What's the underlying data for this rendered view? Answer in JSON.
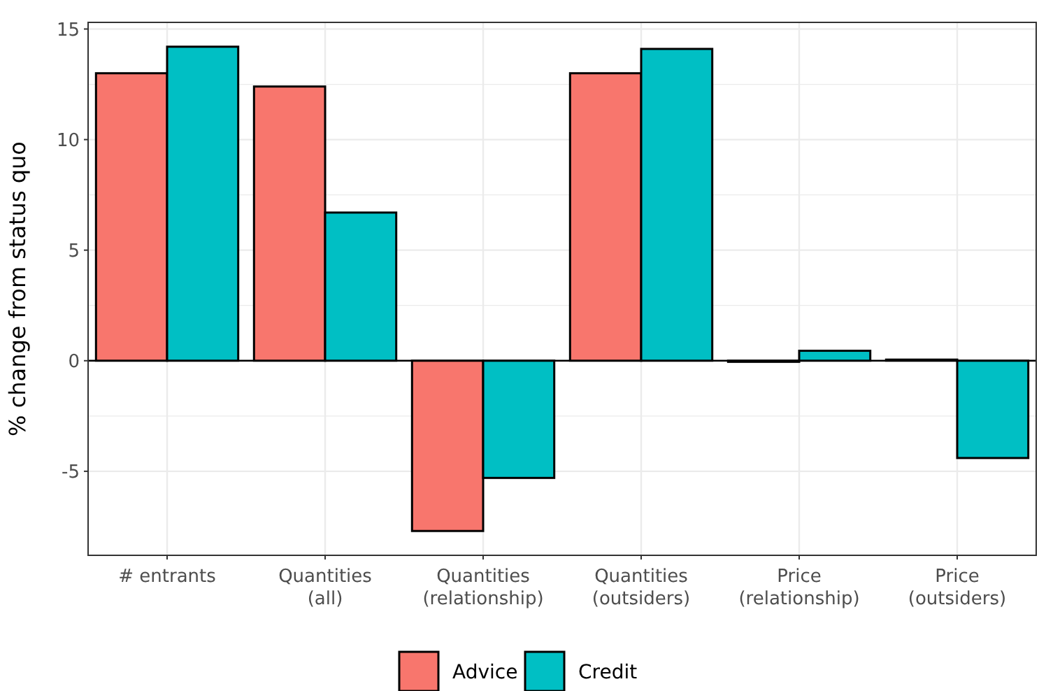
{
  "chart_data": {
    "type": "bar",
    "ylabel": "% change from status quo",
    "categories": [
      "# entrants",
      "Quantities\n(all)",
      "Quantities\n(relationship)",
      "Quantities\n(outsiders)",
      "Price\n(relationship)",
      "Price\n(outsiders)"
    ],
    "series": [
      {
        "name": "Advice",
        "color": "#f8766d",
        "values": [
          13.0,
          12.4,
          -7.7,
          13.0,
          -0.05,
          0.05
        ]
      },
      {
        "name": "Credit",
        "color": "#00bfc4",
        "values": [
          14.2,
          6.7,
          -5.3,
          14.1,
          0.45,
          -4.4
        ]
      }
    ],
    "ylim": [
      -8.8,
      15.3
    ],
    "yticks": [
      -5,
      0,
      5,
      10,
      15
    ],
    "grid": true,
    "legend": "bottom"
  }
}
